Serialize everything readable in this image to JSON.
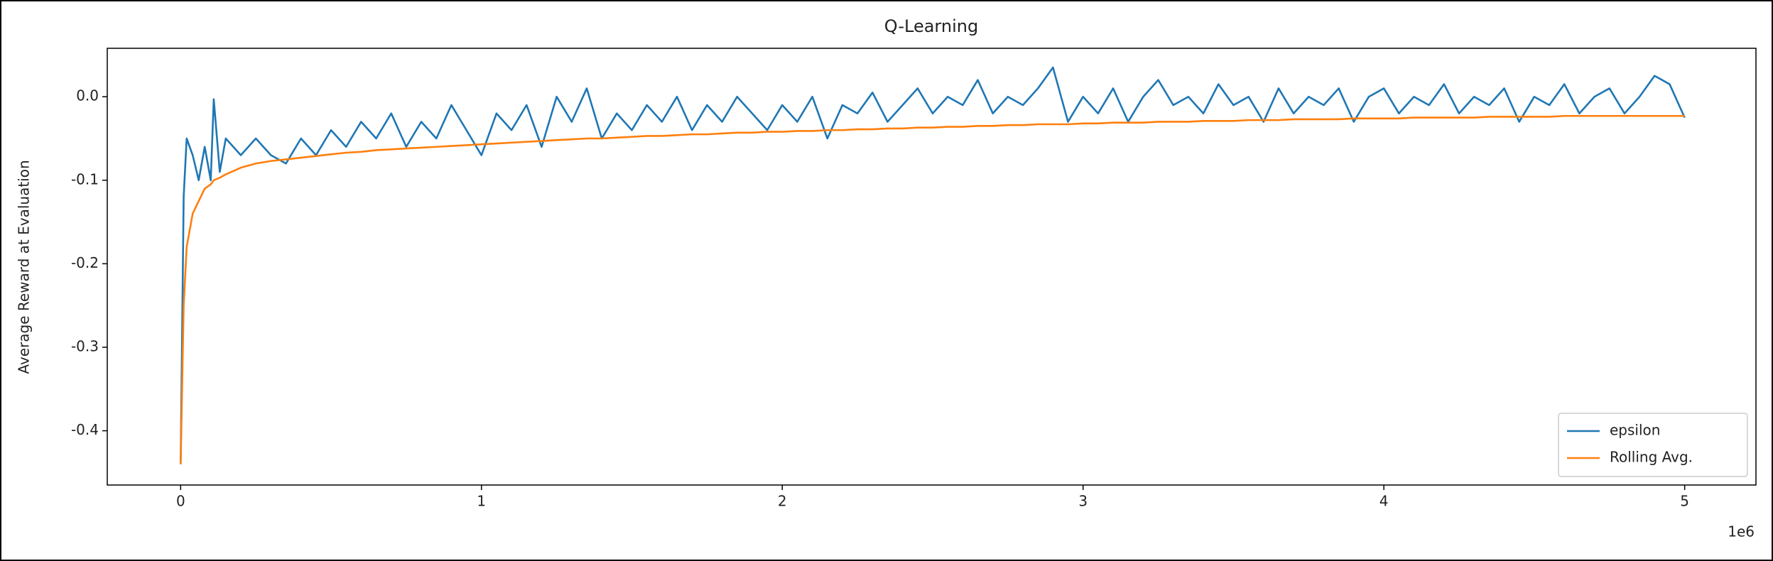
{
  "chart_data": {
    "type": "line",
    "title": "Q-Learning",
    "y_label": "Average Reward at Evaluation",
    "x_offset_label": "1e6",
    "x": [
      0,
      0.01,
      0.02,
      0.04,
      0.06,
      0.08,
      0.1,
      0.11,
      0.13,
      0.15,
      0.2,
      0.25,
      0.3,
      0.35,
      0.4,
      0.45,
      0.5,
      0.55,
      0.6,
      0.65,
      0.7,
      0.75,
      0.8,
      0.85,
      0.9,
      0.95,
      1.0,
      1.05,
      1.1,
      1.15,
      1.2,
      1.25,
      1.3,
      1.35,
      1.4,
      1.45,
      1.5,
      1.55,
      1.6,
      1.65,
      1.7,
      1.75,
      1.8,
      1.85,
      1.9,
      1.95,
      2.0,
      2.05,
      2.1,
      2.15,
      2.2,
      2.25,
      2.3,
      2.35,
      2.4,
      2.45,
      2.5,
      2.55,
      2.6,
      2.65,
      2.7,
      2.75,
      2.8,
      2.85,
      2.9,
      2.95,
      3.0,
      3.05,
      3.1,
      3.15,
      3.2,
      3.25,
      3.3,
      3.35,
      3.4,
      3.45,
      3.5,
      3.55,
      3.6,
      3.65,
      3.7,
      3.75,
      3.8,
      3.85,
      3.9,
      3.95,
      4.0,
      4.05,
      4.1,
      4.15,
      4.2,
      4.25,
      4.3,
      4.35,
      4.4,
      4.45,
      4.5,
      4.55,
      4.6,
      4.65,
      4.7,
      4.75,
      4.8,
      4.85,
      4.9,
      4.95,
      5.0
    ],
    "series": [
      {
        "name": "epsilon",
        "color": "#1f77b4",
        "values": [
          -0.44,
          -0.12,
          -0.05,
          -0.07,
          -0.1,
          -0.06,
          -0.1,
          -0.003,
          -0.09,
          -0.05,
          -0.07,
          -0.05,
          -0.07,
          -0.08,
          -0.05,
          -0.07,
          -0.04,
          -0.06,
          -0.03,
          -0.05,
          -0.02,
          -0.06,
          -0.03,
          -0.05,
          -0.01,
          -0.04,
          -0.07,
          -0.02,
          -0.04,
          -0.01,
          -0.06,
          0.0,
          -0.03,
          0.01,
          -0.05,
          -0.02,
          -0.04,
          -0.01,
          -0.03,
          0.0,
          -0.04,
          -0.01,
          -0.03,
          0.0,
          -0.02,
          -0.04,
          -0.01,
          -0.03,
          0.0,
          -0.05,
          -0.01,
          -0.02,
          0.005,
          -0.03,
          -0.01,
          0.01,
          -0.02,
          0.0,
          -0.01,
          0.02,
          -0.02,
          0.0,
          -0.01,
          0.01,
          0.035,
          -0.03,
          0.0,
          -0.02,
          0.01,
          -0.03,
          0.0,
          0.02,
          -0.01,
          0.0,
          -0.02,
          0.015,
          -0.01,
          0.0,
          -0.03,
          0.01,
          -0.02,
          0.0,
          -0.01,
          0.01,
          -0.03,
          0.0,
          0.01,
          -0.02,
          0.0,
          -0.01,
          0.015,
          -0.02,
          0.0,
          -0.01,
          0.01,
          -0.03,
          0.0,
          -0.01,
          0.015,
          -0.02,
          0.0,
          0.01,
          -0.02,
          0.0,
          0.025,
          0.015,
          -0.025
        ]
      },
      {
        "name": "Rolling Avg.",
        "color": "#ff7f0e",
        "values": [
          -0.44,
          -0.25,
          -0.18,
          -0.14,
          -0.125,
          -0.11,
          -0.105,
          -0.1,
          -0.097,
          -0.093,
          -0.085,
          -0.08,
          -0.077,
          -0.075,
          -0.073,
          -0.071,
          -0.069,
          -0.067,
          -0.066,
          -0.064,
          -0.063,
          -0.062,
          -0.061,
          -0.06,
          -0.059,
          -0.058,
          -0.057,
          -0.056,
          -0.055,
          -0.054,
          -0.053,
          -0.052,
          -0.051,
          -0.05,
          -0.05,
          -0.049,
          -0.048,
          -0.047,
          -0.047,
          -0.046,
          -0.045,
          -0.045,
          -0.044,
          -0.043,
          -0.043,
          -0.042,
          -0.042,
          -0.041,
          -0.041,
          -0.04,
          -0.04,
          -0.039,
          -0.039,
          -0.038,
          -0.038,
          -0.037,
          -0.037,
          -0.036,
          -0.036,
          -0.035,
          -0.035,
          -0.034,
          -0.034,
          -0.033,
          -0.033,
          -0.033,
          -0.032,
          -0.032,
          -0.031,
          -0.031,
          -0.031,
          -0.03,
          -0.03,
          -0.03,
          -0.029,
          -0.029,
          -0.029,
          -0.028,
          -0.028,
          -0.028,
          -0.027,
          -0.027,
          -0.027,
          -0.027,
          -0.026,
          -0.026,
          -0.026,
          -0.026,
          -0.025,
          -0.025,
          -0.025,
          -0.025,
          -0.025,
          -0.024,
          -0.024,
          -0.024,
          -0.024,
          -0.024,
          -0.023,
          -0.023,
          -0.023,
          -0.023,
          -0.023,
          -0.023,
          -0.023,
          -0.023,
          -0.023
        ]
      }
    ],
    "xlim": [
      -0.244,
      5.237
    ],
    "xticks": [
      0,
      1,
      2,
      3,
      4,
      5
    ],
    "ylim": [
      -0.465,
      0.058
    ],
    "yticks": [
      -0.4,
      -0.3,
      -0.2,
      -0.1,
      {
        "value": 0,
        "label": "0.0"
      }
    ],
    "grid": false,
    "legend": "lower right"
  }
}
